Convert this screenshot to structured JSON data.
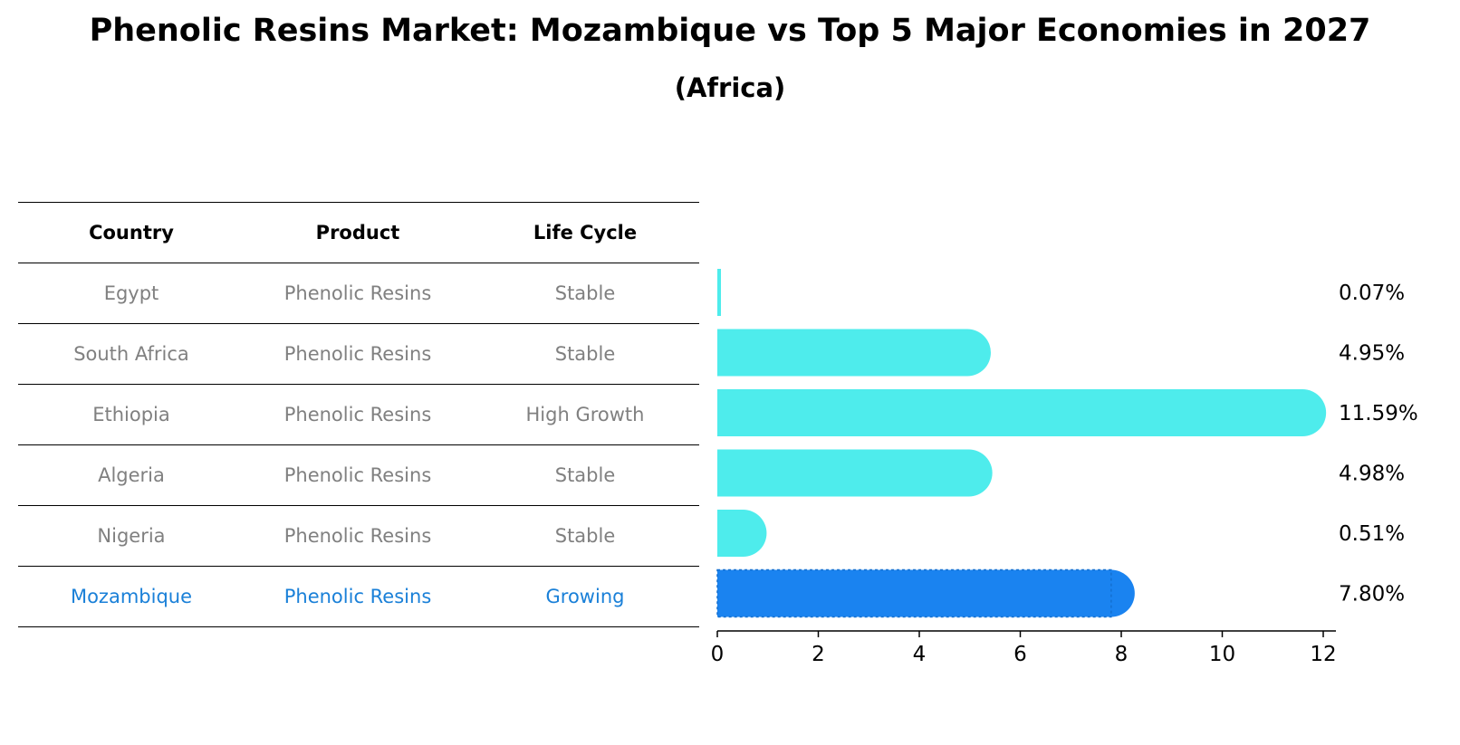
{
  "title": "Phenolic Resins Market: Mozambique vs Top 5 Major Economies in 2027",
  "subtitle": "(Africa)",
  "table": {
    "headers": [
      "Country",
      "Product",
      "Life Cycle"
    ],
    "rows": [
      [
        "Egypt",
        "Phenolic Resins",
        "Stable"
      ],
      [
        "South Africa",
        "Phenolic Resins",
        "Stable"
      ],
      [
        "Ethiopia",
        "Phenolic Resins",
        "High Growth"
      ],
      [
        "Algeria",
        "Phenolic Resins",
        "Stable"
      ],
      [
        "Nigeria",
        "Phenolic Resins",
        "Stable"
      ],
      [
        "Mozambique",
        "Phenolic Resins",
        "Growing"
      ]
    ]
  },
  "chart_data": {
    "type": "bar",
    "orientation": "horizontal",
    "categories": [
      "Egypt",
      "South Africa",
      "Ethiopia",
      "Algeria",
      "Nigeria",
      "Mozambique"
    ],
    "values": [
      0.07,
      4.95,
      11.59,
      4.98,
      0.51,
      7.8
    ],
    "value_labels": [
      "0.07%",
      "4.95%",
      "11.59%",
      "4.98%",
      "0.51%",
      "7.80%"
    ],
    "xlim": [
      0,
      12
    ],
    "xticks": [
      0,
      2,
      4,
      6,
      8,
      10,
      12
    ],
    "highlight": "Mozambique",
    "colors": {
      "default": "#4eecec",
      "highlight": "#1a83f0"
    }
  }
}
